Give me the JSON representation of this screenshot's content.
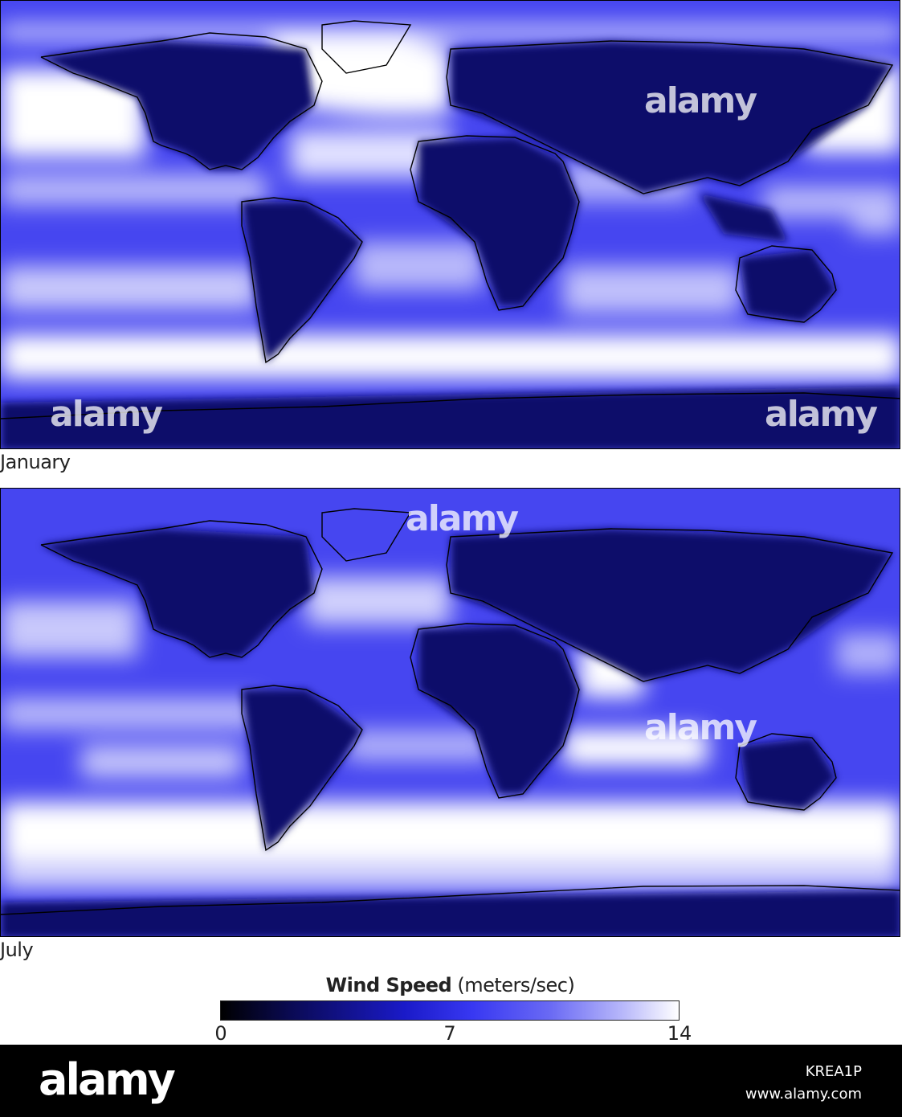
{
  "maps": [
    {
      "label": "January",
      "name": "january"
    },
    {
      "label": "July",
      "name": "july"
    }
  ],
  "legend": {
    "title_bold": "Wind Speed",
    "title_unit": "(meters/sec)",
    "ticks": [
      "0",
      "7",
      "14"
    ],
    "min": 0,
    "max": 14,
    "colors": [
      "#000000",
      "#1a1ac8",
      "#ffffff"
    ]
  },
  "watermark": {
    "text": "alamy",
    "footer_logo": "alamy",
    "image_id": "KREA1P",
    "site": "www.alamy.com"
  }
}
